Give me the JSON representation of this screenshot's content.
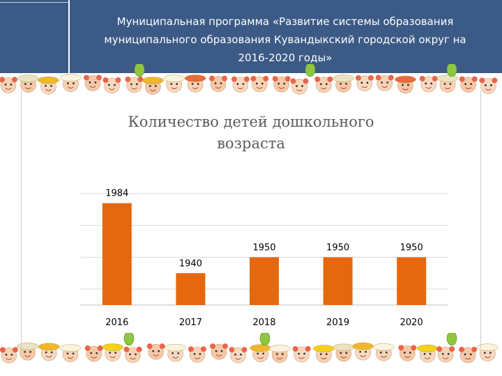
{
  "header": {
    "title_line1": "Муниципальная программа «Развитие системы образования",
    "title_line2": "муниципального образования Кувандыкский городской округ на",
    "title_line3": "2016-2020 годы»"
  },
  "colors": {
    "header_bg": "#3b5a86",
    "bar": "#e5680f",
    "grid": "#d9d9d9"
  },
  "chart_data": {
    "type": "bar",
    "title_line1": "Количество детей дошкольного",
    "title_line2": "возраста",
    "categories": [
      "2016",
      "2017",
      "2018",
      "2019",
      "2020"
    ],
    "values": [
      1984,
      1940,
      1950,
      1950,
      1950
    ],
    "ylim": [
      1920,
      1990
    ],
    "grid": true,
    "legend": "none"
  }
}
